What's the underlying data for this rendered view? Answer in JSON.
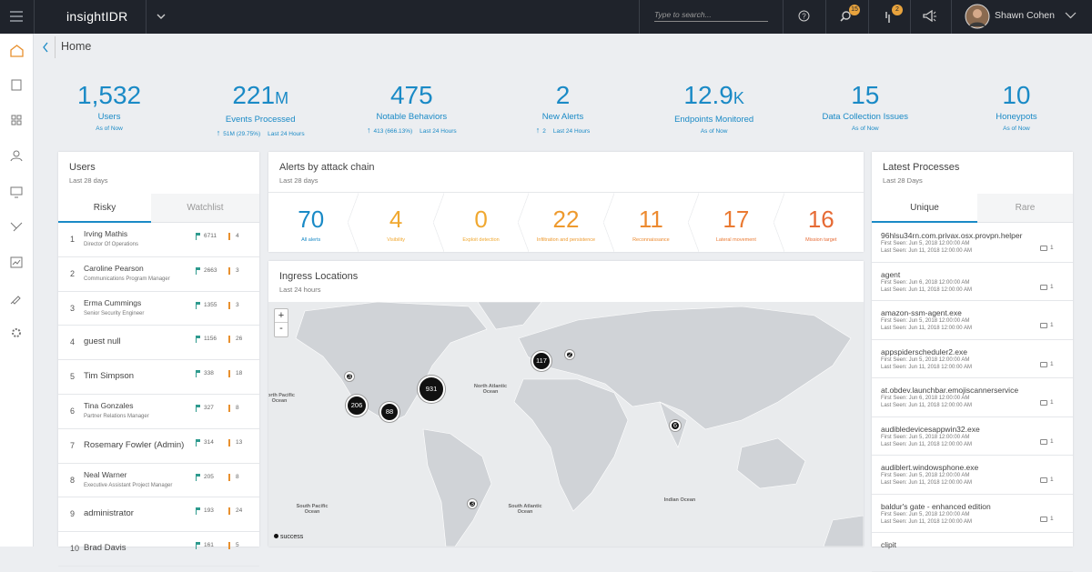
{
  "topbar": {
    "brand": "insightIDR",
    "search_placeholder": "Type to search...",
    "badges": [
      "15",
      "2"
    ],
    "user": "Shawn Cohen"
  },
  "breadcrumb": "Home",
  "stats": [
    {
      "value": "1,532",
      "unit": null,
      "label": "Users",
      "delta": null,
      "period": "As of Now"
    },
    {
      "value": "221",
      "unit": "M",
      "label": "Events Processed",
      "delta": "51M (29.75%)",
      "period": "Last 24 Hours"
    },
    {
      "value": "475",
      "unit": null,
      "label": "Notable Behaviors",
      "delta": "413 (666.13%)",
      "period": "Last 24 Hours"
    },
    {
      "value": "2",
      "unit": null,
      "label": "New Alerts",
      "delta": "2",
      "period": "Last 24 Hours"
    },
    {
      "value": "12.9",
      "unit": "K",
      "label": "Endpoints Monitored",
      "delta": null,
      "period": "As of Now"
    },
    {
      "value": "15",
      "unit": null,
      "label": "Data Collection Issues",
      "delta": null,
      "period": "As of Now"
    },
    {
      "value": "10",
      "unit": null,
      "label": "Honeypots",
      "delta": null,
      "period": "As of Now"
    }
  ],
  "users": {
    "title": "Users",
    "subtitle": "Last 28 days",
    "tabs": [
      "Risky",
      "Watchlist"
    ],
    "rows": [
      {
        "rank": "1",
        "name": "Irving Mathis",
        "role": "Director Of Operations",
        "flags": "6711",
        "alerts": "4"
      },
      {
        "rank": "2",
        "name": "Caroline Pearson",
        "role": "Communications Program Manager",
        "flags": "2663",
        "alerts": "3"
      },
      {
        "rank": "3",
        "name": "Erma Cummings",
        "role": "Senior Security Engineer",
        "flags": "1355",
        "alerts": "3"
      },
      {
        "rank": "4",
        "name": "guest null",
        "role": null,
        "flags": "1156",
        "alerts": "26"
      },
      {
        "rank": "5",
        "name": "Tim Simpson",
        "role": null,
        "flags": "338",
        "alerts": "18"
      },
      {
        "rank": "6",
        "name": "Tina Gonzales",
        "role": "Partner Relations Manager",
        "flags": "327",
        "alerts": "8"
      },
      {
        "rank": "7",
        "name": "Rosemary Fowler (Admin)",
        "role": null,
        "flags": "314",
        "alerts": "13"
      },
      {
        "rank": "8",
        "name": "Neal Warner",
        "role": "Executive Assistant Project Manager",
        "flags": "205",
        "alerts": "8"
      },
      {
        "rank": "9",
        "name": "administrator",
        "role": null,
        "flags": "193",
        "alerts": "24"
      },
      {
        "rank": "10",
        "name": "Brad Davis",
        "role": null,
        "flags": "161",
        "alerts": "5"
      }
    ]
  },
  "alerts": {
    "title": "Alerts by attack chain",
    "subtitle": "Last 28 days",
    "stages": [
      {
        "value": "70",
        "label": "All alerts",
        "color": "#1a8ac6"
      },
      {
        "value": "4",
        "label": "Visibility",
        "color": "#f0a830"
      },
      {
        "value": "0",
        "label": "Exploit detection",
        "color": "#f0a830"
      },
      {
        "value": "22",
        "label": "Infiltration and persistence",
        "color": "#ee9a2e"
      },
      {
        "value": "11",
        "label": "Reconnaissance",
        "color": "#ec8a30"
      },
      {
        "value": "17",
        "label": "Lateral movement",
        "color": "#ea7a32"
      },
      {
        "value": "16",
        "label": "Mission target",
        "color": "#e66a34"
      }
    ]
  },
  "ingress": {
    "title": "Ingress Locations",
    "subtitle": "Last 24 hours",
    "zoom": [
      "+",
      "-"
    ],
    "legend": "success",
    "clusters": [
      "117",
      "2",
      "3",
      "931",
      "206",
      "88",
      "6",
      "3"
    ],
    "oceans": [
      "North Pacific Ocean",
      "North Atlantic Ocean",
      "South Pacific Ocean",
      "South Atlantic Ocean",
      "Indian Ocean"
    ]
  },
  "processes": {
    "title": "Latest Processes",
    "subtitle": "Last 28 Days",
    "tabs": [
      "Unique",
      "Rare"
    ],
    "rows": [
      {
        "name": "96hlsu34rn.com.privax.osx.provpn.helper",
        "first": "First Seen: Jun 5, 2018 12:00:00 AM",
        "last": "Last Seen: Jun 11, 2018 12:00:00 AM",
        "count": "1"
      },
      {
        "name": "agent",
        "first": "First Seen: Jun 6, 2018 12:00:00 AM",
        "last": "Last Seen: Jun 11, 2018 12:00:00 AM",
        "count": "1"
      },
      {
        "name": "amazon-ssm-agent.exe",
        "first": "First Seen: Jun 5, 2018 12:00:00 AM",
        "last": "Last Seen: Jun 11, 2018 12:00:00 AM",
        "count": "1"
      },
      {
        "name": "appspiderscheduler2.exe",
        "first": "First Seen: Jun 5, 2018 12:00:00 AM",
        "last": "Last Seen: Jun 11, 2018 12:00:00 AM",
        "count": "1"
      },
      {
        "name": "at.obdev.launchbar.emojiscannerservice",
        "first": "First Seen: Jun 6, 2018 12:00:00 AM",
        "last": "Last Seen: Jun 11, 2018 12:00:00 AM",
        "count": "1"
      },
      {
        "name": "audibledevicesappwin32.exe",
        "first": "First Seen: Jun 5, 2018 12:00:00 AM",
        "last": "Last Seen: Jun 11, 2018 12:00:00 AM",
        "count": "1"
      },
      {
        "name": "audiblert.windowsphone.exe",
        "first": "First Seen: Jun 5, 2018 12:00:00 AM",
        "last": "Last Seen: Jun 11, 2018 12:00:00 AM",
        "count": "1"
      },
      {
        "name": "baldur's gate - enhanced edition",
        "first": "First Seen: Jun 5, 2018 12:00:00 AM",
        "last": "Last Seen: Jun 11, 2018 12:00:00 AM",
        "count": "1"
      },
      {
        "name": "clipit",
        "first": null,
        "last": null,
        "count": null
      }
    ]
  }
}
